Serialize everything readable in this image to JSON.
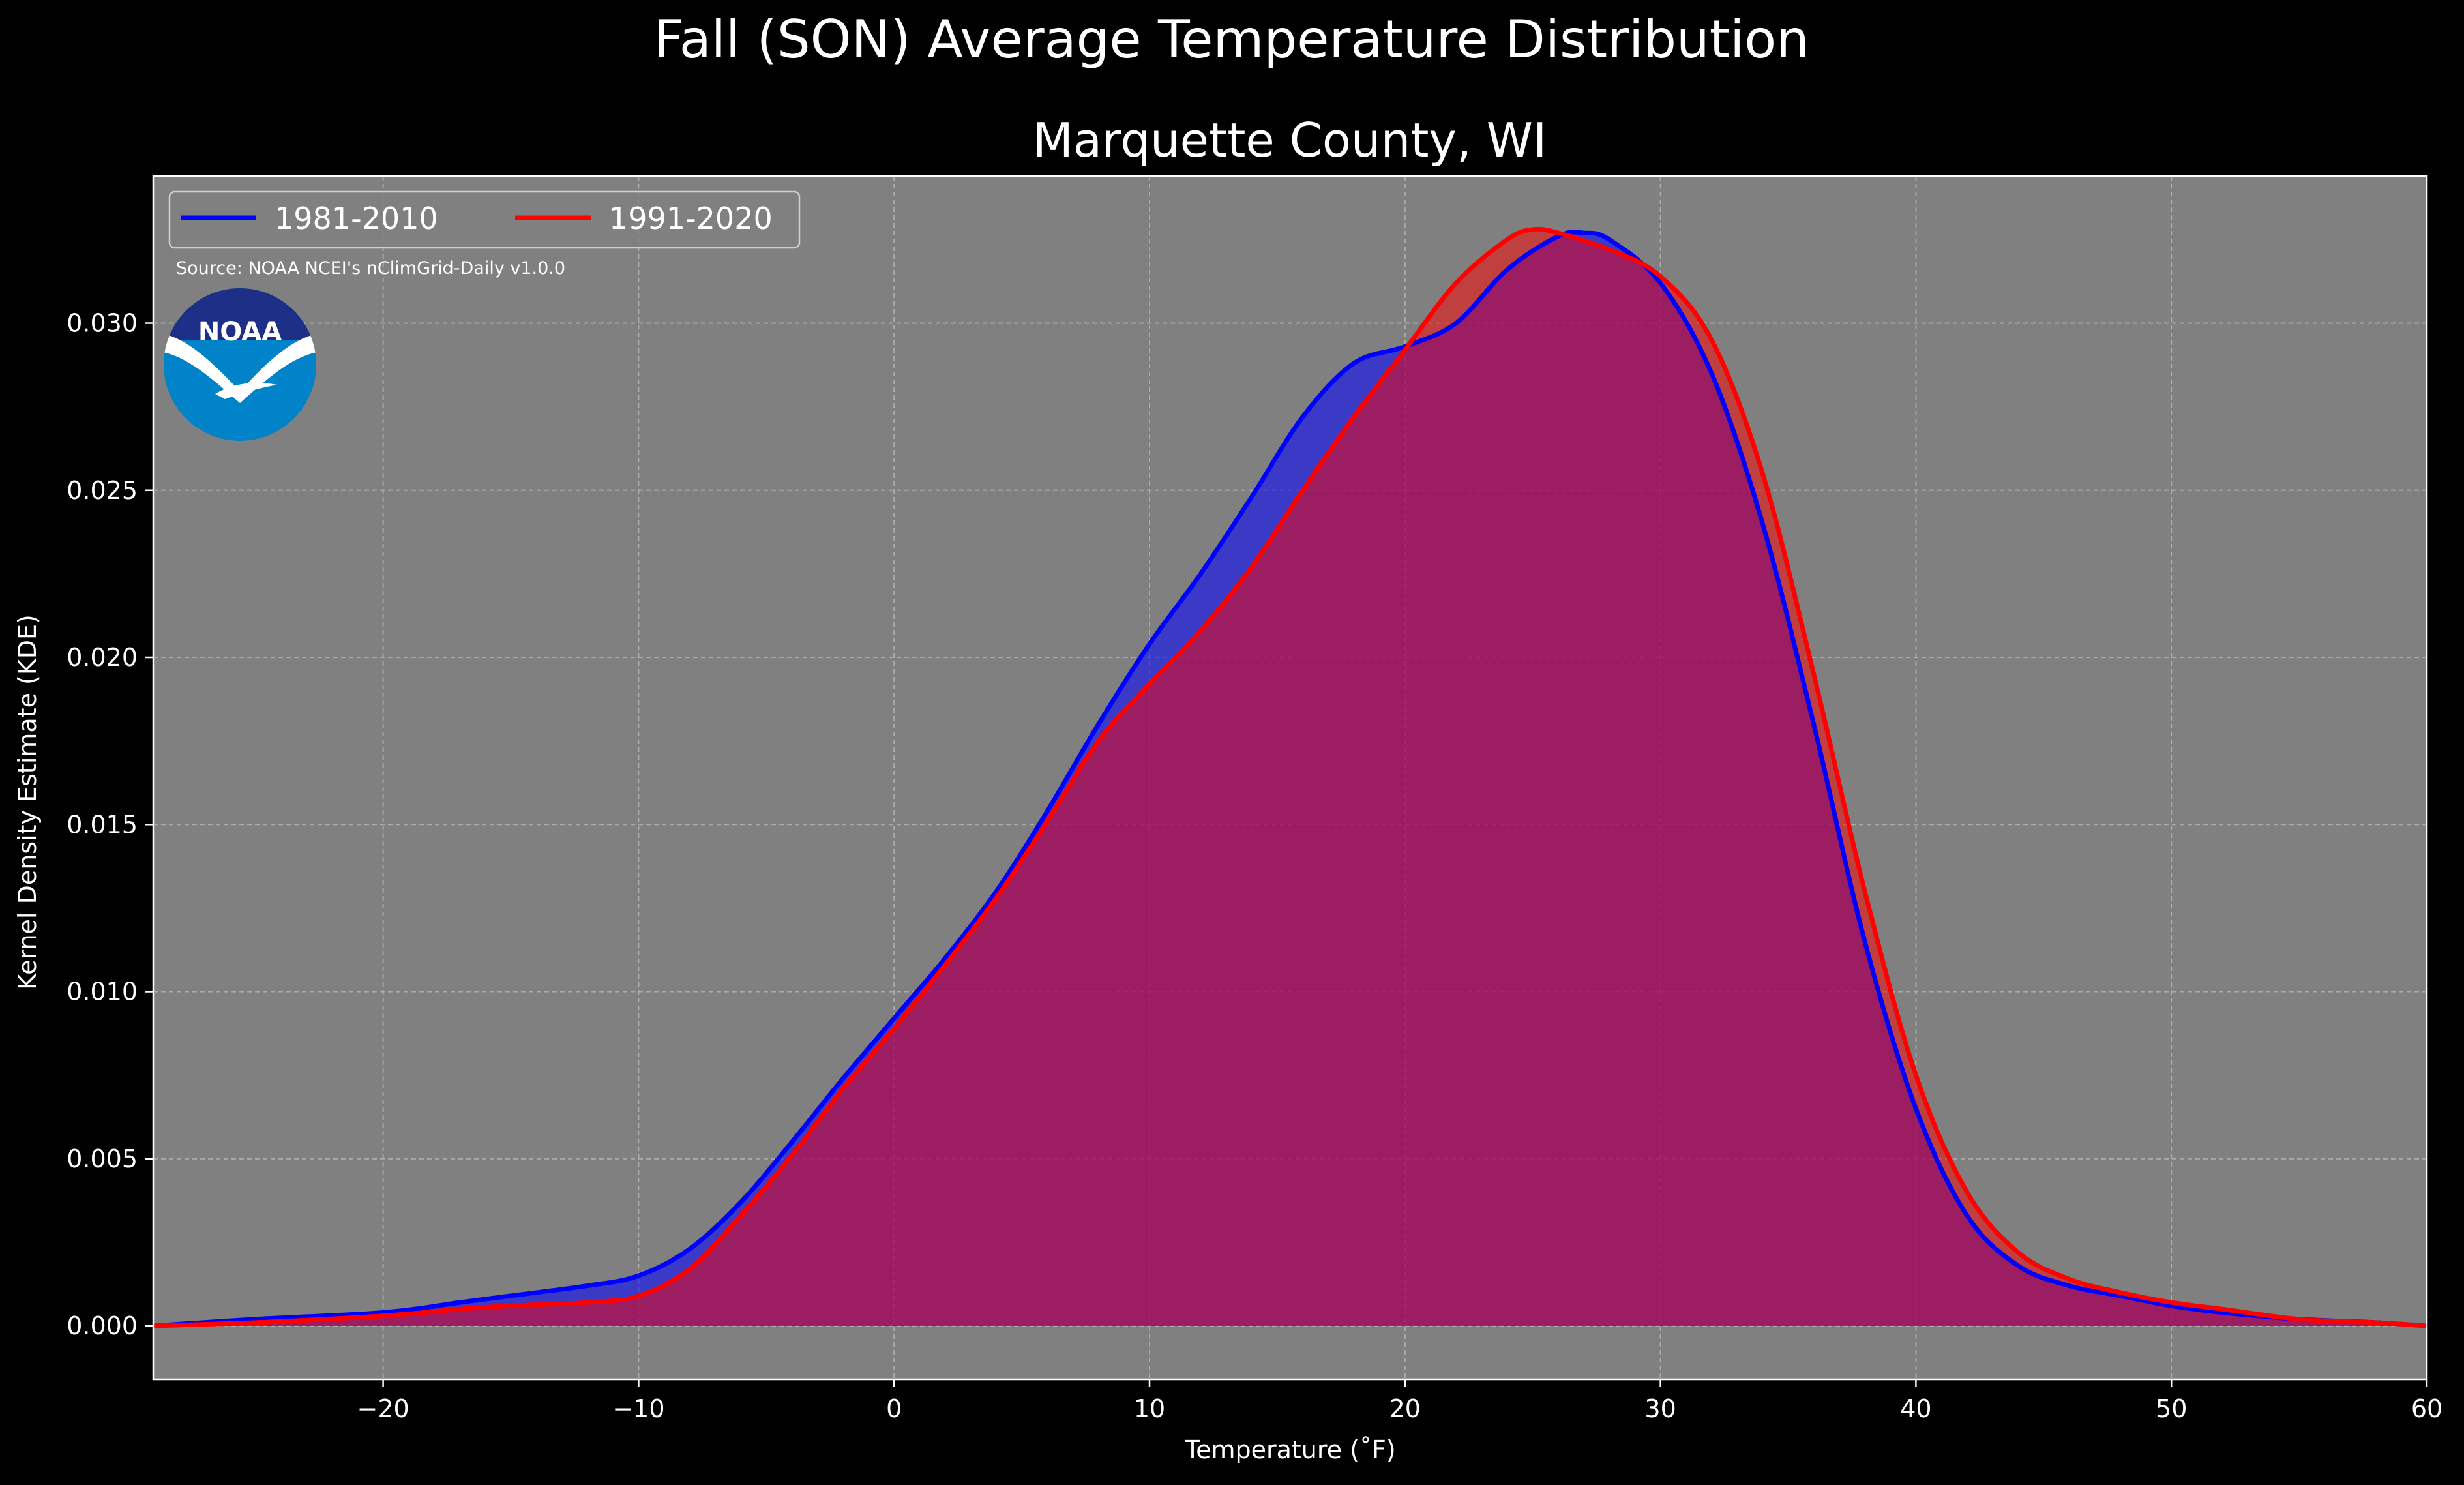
{
  "chart_data": {
    "type": "area",
    "suptitle": "Fall (SON) Average Temperature Distribution",
    "title": "Marquette County, WI",
    "xlabel": "Temperature (˚F)",
    "ylabel": "Kernel Density Estimate (KDE)",
    "xlim": [
      -29,
      60
    ],
    "ylim": [
      -0.0016,
      0.0344
    ],
    "xticks": [
      -20,
      -10,
      0,
      10,
      20,
      30,
      40,
      50,
      60
    ],
    "yticks": [
      0.0,
      0.005,
      0.01,
      0.015,
      0.02,
      0.025,
      0.03
    ],
    "xtick_labels": [
      "−20",
      "−10",
      "0",
      "10",
      "20",
      "30",
      "40",
      "50",
      "60"
    ],
    "ytick_labels": [
      "0.000",
      "0.005",
      "0.010",
      "0.015",
      "0.020",
      "0.025",
      "0.030"
    ],
    "grid": true,
    "legend_position": "top-left",
    "source_note": "Source: NOAA NCEI's nClimGrid-Daily v1.0.0",
    "logo_text": "NOAA",
    "colors": {
      "background": "#000000",
      "plot_background": "#808080",
      "grid": "#bdbdbd",
      "series_1981_2010": "#0000ff",
      "series_1991_2020": "#ff0000"
    },
    "series": [
      {
        "name": "1981-2010",
        "color": "#0000ff",
        "x": [
          -29,
          -25,
          -20,
          -17,
          -15,
          -12,
          -10,
          -8,
          -6,
          -4,
          -2,
          0,
          2,
          4,
          6,
          8,
          10,
          12,
          14,
          16,
          18,
          20,
          22,
          24,
          26,
          27,
          28,
          30,
          32,
          34,
          36,
          38,
          40,
          42,
          44,
          46,
          48,
          50,
          52,
          55,
          58,
          60
        ],
        "y": [
          0.0,
          0.0002,
          0.0004,
          0.0007,
          0.0009,
          0.0012,
          0.0015,
          0.0023,
          0.0037,
          0.0055,
          0.0074,
          0.0092,
          0.011,
          0.013,
          0.0154,
          0.018,
          0.0204,
          0.0225,
          0.0248,
          0.0272,
          0.0288,
          0.0293,
          0.03,
          0.0316,
          0.0326,
          0.0327,
          0.0325,
          0.0312,
          0.0285,
          0.024,
          0.018,
          0.0115,
          0.0065,
          0.0033,
          0.0018,
          0.0012,
          0.0009,
          0.0006,
          0.0004,
          0.0002,
          0.0001,
          0.0
        ]
      },
      {
        "name": "1991-2020",
        "color": "#ff0000",
        "x": [
          -29,
          -25,
          -20,
          -17,
          -15,
          -12,
          -10,
          -8,
          -6,
          -4,
          -2,
          0,
          2,
          4,
          6,
          8,
          10,
          12,
          14,
          16,
          18,
          20,
          22,
          24,
          25,
          26,
          28,
          30,
          32,
          34,
          36,
          38,
          40,
          42,
          44,
          46,
          48,
          50,
          52,
          55,
          58,
          60
        ],
        "y": [
          0.0,
          0.0001,
          0.0003,
          0.0005,
          0.0006,
          0.0007,
          0.0009,
          0.0017,
          0.0033,
          0.0051,
          0.0071,
          0.0089,
          0.0108,
          0.0128,
          0.0151,
          0.0175,
          0.0192,
          0.0208,
          0.0227,
          0.025,
          0.0272,
          0.0292,
          0.0312,
          0.0325,
          0.0328,
          0.0327,
          0.0322,
          0.0314,
          0.0295,
          0.0255,
          0.0195,
          0.013,
          0.0075,
          0.004,
          0.0022,
          0.0014,
          0.001,
          0.0007,
          0.0005,
          0.0002,
          0.0001,
          0.0
        ]
      }
    ]
  }
}
